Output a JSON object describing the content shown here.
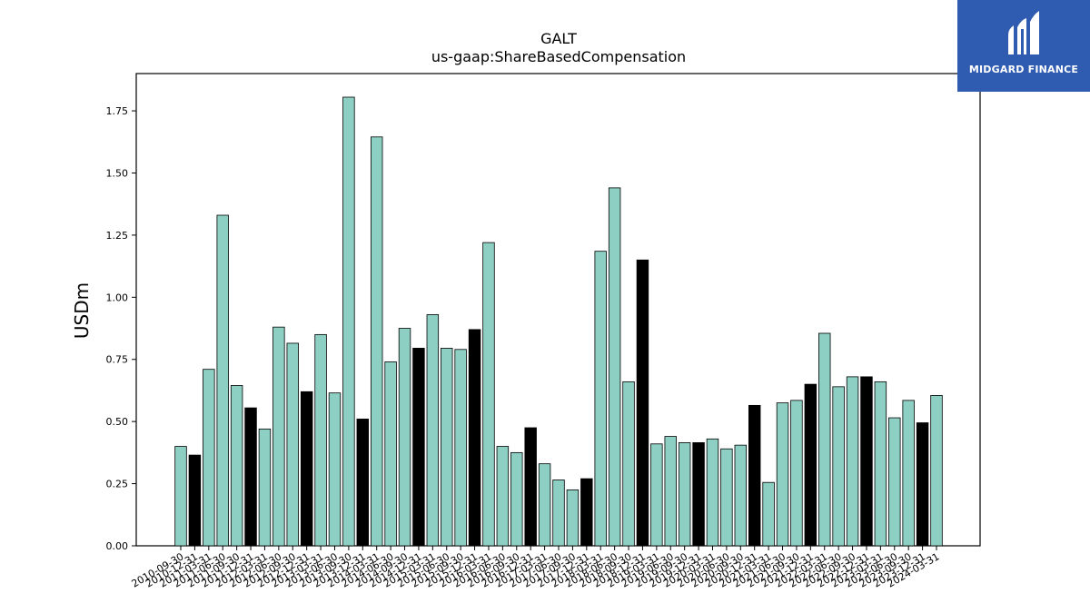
{
  "chart_data": {
    "type": "bar",
    "title": "GALT",
    "subtitle": "us-gaap:ShareBasedCompensation",
    "xlabel": "",
    "ylabel": "USDm",
    "ylim": [
      0,
      1.9
    ],
    "yticks": [
      "0.00",
      "0.25",
      "0.50",
      "0.75",
      "1.00",
      "1.25",
      "1.50",
      "1.75"
    ],
    "grid": false,
    "colors": {
      "quarter": "#8ecfc3",
      "year_end_highlight": "#000000",
      "edge": "#000000"
    },
    "categories": [
      "2010-09-30",
      "2010-12-31",
      "2011-03-31",
      "2011-06-30",
      "2011-09-30",
      "2011-12-31",
      "2012-03-31",
      "2012-06-30",
      "2012-09-30",
      "2012-12-31",
      "2013-03-31",
      "2013-06-30",
      "2013-09-30",
      "2013-12-31",
      "2014-03-31",
      "2014-06-30",
      "2014-09-30",
      "2014-12-31",
      "2015-03-31",
      "2015-06-30",
      "2015-09-30",
      "2015-12-31",
      "2016-03-31",
      "2016-06-30",
      "2016-09-30",
      "2016-12-31",
      "2017-03-31",
      "2017-06-30",
      "2017-09-30",
      "2017-12-31",
      "2018-03-31",
      "2018-06-30",
      "2018-09-30",
      "2018-12-31",
      "2019-03-31",
      "2019-06-30",
      "2019-09-30",
      "2019-12-31",
      "2020-03-31",
      "2020-06-30",
      "2020-09-30",
      "2020-12-31",
      "2021-03-31",
      "2021-06-30",
      "2021-09-30",
      "2021-12-31",
      "2022-03-31",
      "2022-06-30",
      "2022-09-30",
      "2022-12-31",
      "2023-03-31",
      "2023-06-30",
      "2023-09-30",
      "2023-12-31",
      "2024-03-31"
    ],
    "values": [
      0.4,
      0.365,
      0.71,
      1.33,
      0.645,
      0.555,
      0.47,
      0.88,
      0.815,
      0.62,
      0.85,
      0.615,
      1.805,
      0.51,
      1.645,
      0.74,
      0.875,
      0.795,
      0.93,
      0.795,
      0.79,
      0.87,
      1.22,
      0.4,
      0.375,
      0.475,
      0.33,
      0.265,
      0.225,
      0.27,
      1.185,
      1.44,
      0.66,
      1.15,
      0.41,
      0.44,
      0.415,
      0.415,
      0.43,
      0.39,
      0.405,
      0.565,
      0.255,
      0.575,
      0.585,
      0.65,
      0.855,
      0.64,
      0.68,
      0.68,
      0.66,
      0.515,
      0.585,
      0.495,
      0.605
    ],
    "highlight": [
      false,
      true,
      false,
      false,
      false,
      true,
      false,
      false,
      false,
      true,
      false,
      false,
      false,
      true,
      false,
      false,
      false,
      true,
      false,
      false,
      false,
      true,
      false,
      false,
      false,
      true,
      false,
      false,
      false,
      true,
      false,
      false,
      false,
      true,
      false,
      false,
      false,
      true,
      false,
      false,
      false,
      true,
      false,
      false,
      false,
      true,
      false,
      false,
      false,
      true,
      false,
      false,
      false,
      true,
      false
    ]
  },
  "logo": {
    "text": "MIDGARD FINANCE",
    "color": "#2f5bb0"
  }
}
